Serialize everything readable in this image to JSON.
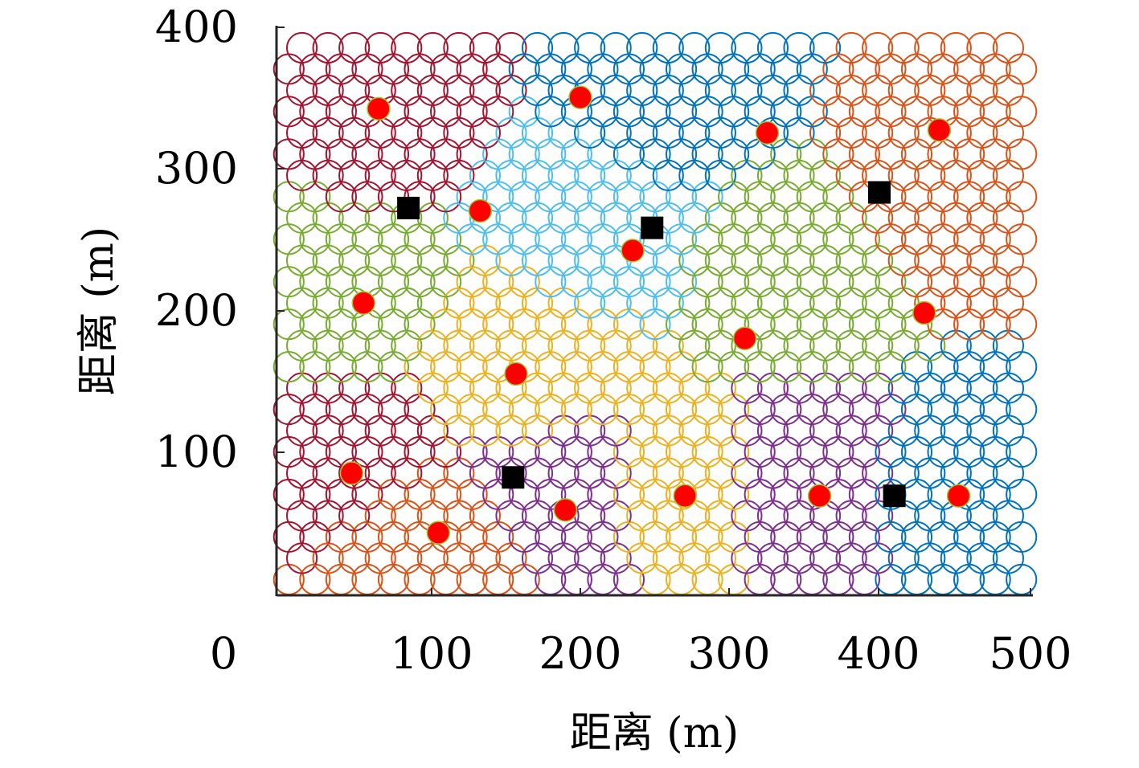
{
  "chart_data": {
    "type": "scatter",
    "xlabel": "距离 (m)",
    "ylabel": "距离 (m)",
    "xlim": [
      0,
      500
    ],
    "ylim": [
      0,
      400
    ],
    "x_ticks": [
      "0",
      "100",
      "200",
      "300",
      "400",
      "500"
    ],
    "y_ticks": [
      "100",
      "200",
      "300",
      "400"
    ],
    "grid": false,
    "legend": "none",
    "cell_radius_m": 10,
    "cell_spacing_x_m": 17.5,
    "cell_spacing_y_m": 15,
    "cell_x_range_m": [
      5,
      495
    ],
    "cell_y_range_m": [
      10,
      385
    ],
    "region_colors": {
      "crimson": "#A2142F",
      "blue": "#0072BD",
      "orange": "#D95319",
      "lightblue": "#4DBEEE",
      "green": "#77AC30",
      "yellow": "#EDB120",
      "purple": "#7E2F8E"
    },
    "regions": [
      {
        "color": "crimson",
        "center": [
          60,
          340
        ]
      },
      {
        "color": "blue",
        "center": [
          260,
          355
        ]
      },
      {
        "color": "orange",
        "center": [
          440,
          290
        ]
      },
      {
        "color": "lightblue",
        "center": [
          210,
          260
        ]
      },
      {
        "color": "green",
        "center": [
          40,
          215
        ]
      },
      {
        "color": "green",
        "center": [
          340,
          225
        ]
      },
      {
        "color": "yellow",
        "center": [
          165,
          165
        ]
      },
      {
        "color": "yellow",
        "center": [
          265,
          75
        ]
      },
      {
        "color": "crimson",
        "center": [
          40,
          105
        ]
      },
      {
        "color": "orange",
        "center": [
          100,
          30
        ]
      },
      {
        "color": "purple",
        "center": [
          195,
          70
        ]
      },
      {
        "color": "purple",
        "center": [
          350,
          75
        ]
      },
      {
        "color": "blue",
        "center": [
          460,
          70
        ]
      }
    ],
    "users": [
      {
        "x": 65,
        "y": 342
      },
      {
        "x": 200,
        "y": 350
      },
      {
        "x": 325,
        "y": 325
      },
      {
        "x": 440,
        "y": 327
      },
      {
        "x": 133,
        "y": 270
      },
      {
        "x": 235,
        "y": 242
      },
      {
        "x": 55,
        "y": 205
      },
      {
        "x": 310,
        "y": 180
      },
      {
        "x": 430,
        "y": 198
      },
      {
        "x": 157,
        "y": 155
      },
      {
        "x": 47,
        "y": 85
      },
      {
        "x": 105,
        "y": 43
      },
      {
        "x": 190,
        "y": 59
      },
      {
        "x": 270,
        "y": 69
      },
      {
        "x": 360,
        "y": 69
      },
      {
        "x": 453,
        "y": 69
      }
    ],
    "base_stations": [
      {
        "x": 85,
        "y": 272
      },
      {
        "x": 248,
        "y": 258
      },
      {
        "x": 400,
        "y": 283
      },
      {
        "x": 155,
        "y": 82
      },
      {
        "x": 410,
        "y": 69
      }
    ],
    "user_color": "#FF0000",
    "base_station_color": "#000000"
  }
}
